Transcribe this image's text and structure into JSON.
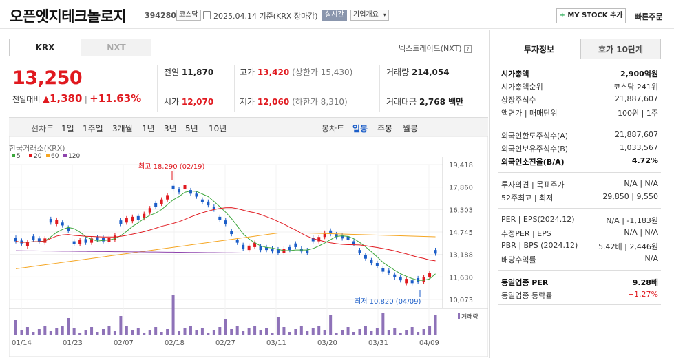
{
  "header": {
    "title": "오픈엣지테크놀로지",
    "code": "394280",
    "market": "코스닥",
    "date_text": "2025.04.14 기준(KRX 장마감)",
    "realtime": "실시간",
    "company_info": "기업개요",
    "mystock": "MY STOCK 추가",
    "quick_order": "빠른주문"
  },
  "tabs": {
    "krx": "KRX",
    "nxt": "NXT",
    "nextrade": "넥스트레이드(NXT)"
  },
  "quote": {
    "price": "13,250",
    "change_label": "전일대비",
    "change": "1,380",
    "change_pct": "+11.63%",
    "prev_label": "전일",
    "prev": "11,870",
    "open_label": "시가",
    "open": "12,070",
    "high_label": "고가",
    "high": "13,420",
    "upper_label": "(상한가 15,430)",
    "low_label": "저가",
    "low": "12,060",
    "lower_label": "(하한가 8,310)",
    "vol_label": "거래량",
    "vol": "214,054",
    "amt_label": "거래대금",
    "amt": "2,768 백만"
  },
  "periods": {
    "line_label": "선차트",
    "line": [
      "1일",
      "1주일",
      "3개월",
      "1년",
      "3년",
      "5년",
      "10년"
    ],
    "candle_label": "봉차트",
    "candle": [
      "일봉",
      "주봉",
      "월봉"
    ]
  },
  "chart_data": {
    "type": "candlestick",
    "source": "한국거래소(KRX)",
    "legend": [
      {
        "name": "5",
        "color": "#3ca63c"
      },
      {
        "name": "20",
        "color": "#e0191f"
      },
      {
        "name": "60",
        "color": "#f5a623"
      },
      {
        "name": "120",
        "color": "#8e44ad"
      }
    ],
    "ylim": [
      10073,
      19418
    ],
    "yticks": [
      "19,418",
      "17,860",
      "16,303",
      "14,745",
      "13,188",
      "11,630",
      "10,073"
    ],
    "xticks": [
      "01/14",
      "01/23",
      "02/07",
      "02/18",
      "02/27",
      "03/11",
      "03/20",
      "03/31",
      "04/09"
    ],
    "high_label": "최고 18,290 (02/19)",
    "low_label": "최저 10,820 (04/09)",
    "volume_label": "거래량"
  },
  "invest": {
    "tab1": "투자정보",
    "tab2": "호가 10단계",
    "rows": [
      {
        "l": "시가총액",
        "r": "2,900억원",
        "bold": true
      },
      {
        "l": "시가총액순위",
        "r": "코스닥 241위"
      },
      {
        "l": "상장주식수",
        "r": "21,887,607"
      },
      {
        "l": "액면가 | 매매단위",
        "r": "100원 | 1주"
      },
      {
        "l": "외국인한도주식수(A)",
        "r": "21,887,607"
      },
      {
        "l": "외국인보유주식수(B)",
        "r": "1,033,567"
      },
      {
        "l": "외국인소진율(B/A)",
        "r": "4.72%",
        "bold": true
      },
      {
        "l": "투자의견 | 목표주가",
        "r": "N/A | N/A"
      },
      {
        "l": "52주최고 | 최저",
        "r": "29,850 | 9,550"
      },
      {
        "l": "PER | EPS(2024.12)",
        "r": "N/A | -1,183원"
      },
      {
        "l": "추정PER | EPS",
        "r": "N/A | N/A"
      },
      {
        "l": "PBR | BPS (2024.12)",
        "r": "5.42배 | 2,446원"
      },
      {
        "l": "배당수익률",
        "r": "N/A"
      },
      {
        "l": "동일업종 PER",
        "r": "9.28배",
        "bold": true
      },
      {
        "l": "동일업종 등락률",
        "r": "+1.27%",
        "red": true
      }
    ]
  }
}
